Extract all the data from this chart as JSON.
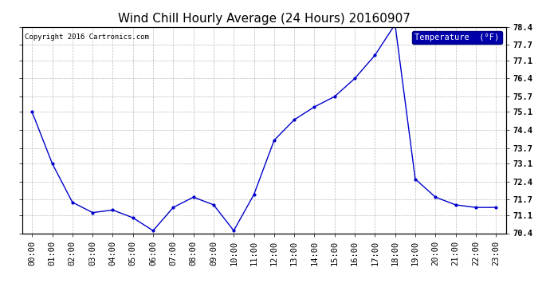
{
  "title": "Wind Chill Hourly Average (24 Hours) 20160907",
  "copyright": "Copyright 2016 Cartronics.com",
  "legend_label": "Temperature  (°F)",
  "x_labels": [
    "00:00",
    "01:00",
    "02:00",
    "03:00",
    "04:00",
    "05:00",
    "06:00",
    "07:00",
    "08:00",
    "09:00",
    "10:00",
    "11:00",
    "12:00",
    "13:00",
    "14:00",
    "15:00",
    "16:00",
    "17:00",
    "18:00",
    "19:00",
    "20:00",
    "21:00",
    "22:00",
    "23:00"
  ],
  "y_values": [
    75.1,
    73.1,
    71.6,
    71.2,
    71.3,
    71.0,
    70.5,
    71.4,
    71.8,
    71.5,
    70.5,
    71.9,
    74.0,
    74.8,
    75.3,
    75.7,
    76.4,
    77.3,
    78.5,
    72.5,
    71.8,
    71.5,
    71.4,
    71.4
  ],
  "ylim_min": 70.4,
  "ylim_max": 78.4,
  "yticks": [
    70.4,
    71.1,
    71.7,
    72.4,
    73.1,
    73.7,
    74.4,
    75.1,
    75.7,
    76.4,
    77.1,
    77.7,
    78.4
  ],
  "line_color": "#0000cc",
  "marker": ".",
  "marker_size": 4,
  "bg_color": "#ffffff",
  "plot_bg_color": "#ffffff",
  "grid_color": "#aaaaaa",
  "title_fontsize": 11,
  "tick_fontsize": 7.5,
  "copyright_fontsize": 6.5,
  "legend_bg": "#0000aa",
  "legend_text_color": "#ffffff"
}
